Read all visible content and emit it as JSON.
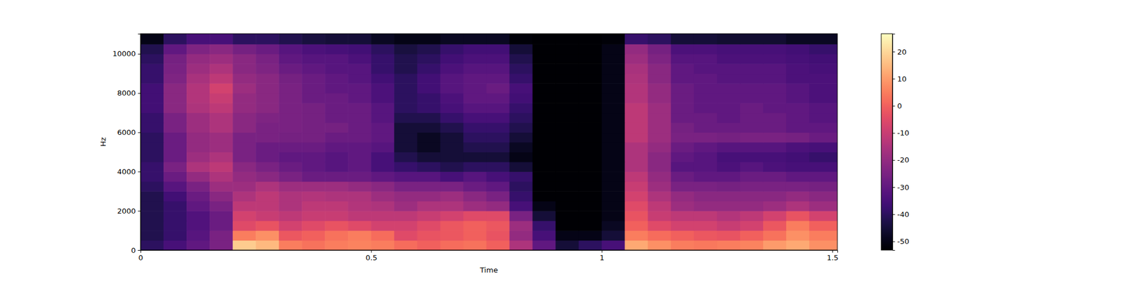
{
  "chart_data": {
    "type": "heatmap",
    "color": "magma",
    "xlabel": "Time",
    "ylabel": "Hz",
    "xlim": [
      0,
      1.511
    ],
    "xticks": [
      0,
      0.5,
      1,
      1.5
    ],
    "ylim": [
      0,
      11025
    ],
    "yticks": [
      0,
      2000,
      4000,
      6000,
      8000,
      10000
    ],
    "colorbar_range": [
      -53.2,
      26.6
    ],
    "colorbar_ticks": [
      -50,
      -40,
      -30,
      -20,
      -10,
      0,
      10,
      20
    ],
    "x": [
      0,
      0.05,
      0.1,
      0.15,
      0.2,
      0.25,
      0.3,
      0.35,
      0.4,
      0.45,
      0.5,
      0.55,
      0.6,
      0.65,
      0.7,
      0.75,
      0.8,
      0.85,
      0.9,
      0.95,
      1.0,
      1.05,
      1.1,
      1.15,
      1.2,
      1.25,
      1.3,
      1.35,
      1.4,
      1.45
    ],
    "y": [
      0,
      500,
      1000,
      1500,
      2000,
      2500,
      3000,
      3500,
      4000,
      4500,
      5000,
      5500,
      6000,
      6500,
      7000,
      7500,
      8000,
      8500,
      9000,
      9500,
      10000,
      10500
    ],
    "z": [
      [
        -40,
        -35,
        -30,
        -25,
        18,
        15,
        5,
        3,
        5,
        6,
        5,
        2,
        0,
        2,
        3,
        0,
        -15,
        -30,
        -45,
        -40,
        -35,
        12,
        8,
        5,
        4,
        5,
        6,
        10,
        12,
        8
      ],
      [
        -42,
        -38,
        -32,
        -25,
        5,
        8,
        -2,
        0,
        3,
        5,
        2,
        -5,
        -3,
        -2,
        0,
        -3,
        -20,
        -35,
        -50,
        -50,
        -45,
        5,
        2,
        0,
        -2,
        -3,
        0,
        3,
        8,
        5
      ],
      [
        -42,
        -38,
        -33,
        -28,
        -5,
        -3,
        -8,
        -5,
        -3,
        -5,
        -8,
        -8,
        -5,
        -2,
        0,
        -2,
        -18,
        -38,
        -53,
        -53,
        -48,
        0,
        -5,
        -8,
        -8,
        -10,
        -8,
        -2,
        5,
        0
      ],
      [
        -42,
        -38,
        -33,
        -28,
        -8,
        -10,
        -12,
        -10,
        -10,
        -12,
        -12,
        -12,
        -10,
        -8,
        -5,
        -5,
        -25,
        -45,
        -53,
        -53,
        -50,
        -3,
        -10,
        -12,
        -12,
        -14,
        -12,
        -8,
        -3,
        -8
      ],
      [
        -42,
        -38,
        -30,
        -25,
        -12,
        -12,
        -15,
        -12,
        -12,
        -14,
        -15,
        -18,
        -15,
        -15,
        -18,
        -20,
        -35,
        -50,
        -53,
        -53,
        -50,
        -5,
        -12,
        -18,
        -20,
        -20,
        -20,
        -18,
        -15,
        -18
      ],
      [
        -42,
        -36,
        -28,
        -22,
        -15,
        -12,
        -15,
        -14,
        -15,
        -15,
        -18,
        -20,
        -20,
        -18,
        -22,
        -25,
        -38,
        -53,
        -53,
        -53,
        -50,
        -8,
        -15,
        -20,
        -22,
        -22,
        -22,
        -22,
        -20,
        -22
      ],
      [
        -40,
        -32,
        -25,
        -18,
        -18,
        -15,
        -18,
        -18,
        -18,
        -20,
        -22,
        -25,
        -25,
        -25,
        -28,
        -30,
        -40,
        -53,
        -53,
        -53,
        -50,
        -10,
        -18,
        -25,
        -25,
        -26,
        -25,
        -25,
        -25,
        -26
      ],
      [
        -38,
        -28,
        -20,
        -15,
        -20,
        -22,
        -25,
        -28,
        -28,
        -28,
        -30,
        -32,
        -32,
        -35,
        -32,
        -35,
        -38,
        -53,
        -53,
        -53,
        -50,
        -12,
        -20,
        -28,
        -30,
        -30,
        -28,
        -28,
        -30,
        -30
      ],
      [
        -38,
        -25,
        -15,
        -12,
        -22,
        -25,
        -28,
        -30,
        -32,
        -30,
        -35,
        -38,
        -40,
        -42,
        -40,
        -40,
        -45,
        -53,
        -53,
        -53,
        -50,
        -15,
        -22,
        -32,
        -32,
        -34,
        -32,
        -34,
        -35,
        -35
      ],
      [
        -40,
        -28,
        -18,
        -15,
        -25,
        -28,
        -30,
        -30,
        -32,
        -30,
        -35,
        -42,
        -45,
        -45,
        -45,
        -45,
        -50,
        -53,
        -53,
        -53,
        -50,
        -15,
        -22,
        -30,
        -32,
        -35,
        -35,
        -35,
        -36,
        -38
      ],
      [
        -40,
        -28,
        -20,
        -18,
        -25,
        -28,
        -28,
        -28,
        -30,
        -30,
        -32,
        -45,
        -48,
        -45,
        -42,
        -42,
        -48,
        -53,
        -53,
        -53,
        -50,
        -15,
        -20,
        -28,
        -30,
        -32,
        -32,
        -32,
        -34,
        -35
      ],
      [
        -40,
        -28,
        -20,
        -18,
        -25,
        -25,
        -26,
        -26,
        -28,
        -28,
        -30,
        -45,
        -48,
        -45,
        -40,
        -40,
        -45,
        -53,
        -53,
        -53,
        -50,
        -12,
        -18,
        -25,
        -25,
        -26,
        -25,
        -25,
        -26,
        -28
      ],
      [
        -38,
        -25,
        -18,
        -15,
        -22,
        -25,
        -25,
        -26,
        -26,
        -28,
        -30,
        -45,
        -45,
        -42,
        -38,
        -38,
        -42,
        -53,
        -53,
        -53,
        -50,
        -12,
        -18,
        -26,
        -28,
        -28,
        -28,
        -28,
        -30,
        -30
      ],
      [
        -38,
        -25,
        -18,
        -15,
        -22,
        -24,
        -25,
        -26,
        -28,
        -28,
        -32,
        -42,
        -42,
        -38,
        -35,
        -35,
        -40,
        -53,
        -53,
        -53,
        -50,
        -12,
        -18,
        -28,
        -28,
        -30,
        -28,
        -28,
        -30,
        -32
      ],
      [
        -36,
        -22,
        -15,
        -12,
        -20,
        -22,
        -25,
        -26,
        -28,
        -28,
        -32,
        -40,
        -38,
        -35,
        -32,
        -32,
        -38,
        -53,
        -53,
        -53,
        -50,
        -12,
        -18,
        -28,
        -30,
        -30,
        -28,
        -30,
        -30,
        -32
      ],
      [
        -36,
        -22,
        -14,
        -10,
        -20,
        -22,
        -25,
        -28,
        -28,
        -30,
        -34,
        -40,
        -38,
        -34,
        -30,
        -30,
        -36,
        -53,
        -53,
        -53,
        -50,
        -14,
        -20,
        -28,
        -30,
        -30,
        -30,
        -30,
        -32,
        -34
      ],
      [
        -36,
        -22,
        -14,
        -8,
        -18,
        -22,
        -25,
        -28,
        -30,
        -30,
        -34,
        -40,
        -36,
        -32,
        -30,
        -28,
        -35,
        -53,
        -53,
        -53,
        -50,
        -14,
        -20,
        -28,
        -30,
        -30,
        -30,
        -30,
        -32,
        -34
      ],
      [
        -38,
        -24,
        -16,
        -12,
        -20,
        -22,
        -26,
        -28,
        -30,
        -32,
        -36,
        -40,
        -36,
        -32,
        -30,
        -30,
        -38,
        -53,
        -53,
        -53,
        -50,
        -15,
        -22,
        -30,
        -30,
        -32,
        -32,
        -32,
        -34,
        -34
      ],
      [
        -38,
        -25,
        -18,
        -15,
        -22,
        -24,
        -28,
        -30,
        -32,
        -32,
        -38,
        -42,
        -38,
        -34,
        -32,
        -32,
        -40,
        -53,
        -53,
        -53,
        -50,
        -16,
        -22,
        -30,
        -32,
        -32,
        -32,
        -32,
        -34,
        -35
      ],
      [
        -40,
        -26,
        -20,
        -18,
        -22,
        -25,
        -30,
        -32,
        -32,
        -34,
        -38,
        -42,
        -40,
        -36,
        -34,
        -34,
        -42,
        -53,
        -53,
        -53,
        -50,
        -18,
        -24,
        -32,
        -32,
        -34,
        -34,
        -34,
        -35,
        -36
      ],
      [
        -42,
        -30,
        -24,
        -22,
        -26,
        -28,
        -32,
        -34,
        -35,
        -36,
        -40,
        -44,
        -42,
        -38,
        -36,
        -36,
        -45,
        -53,
        -53,
        -53,
        -50,
        -20,
        -26,
        -34,
        -34,
        -35,
        -35,
        -35,
        -36,
        -38
      ],
      [
        -50,
        -40,
        -35,
        -35,
        -40,
        -40,
        -42,
        -44,
        -45,
        -45,
        -48,
        -50,
        -50,
        -48,
        -48,
        -48,
        -52,
        -53,
        -53,
        -53,
        -52,
        -38,
        -40,
        -45,
        -45,
        -46,
        -46,
        -46,
        -48,
        -48
      ]
    ]
  }
}
